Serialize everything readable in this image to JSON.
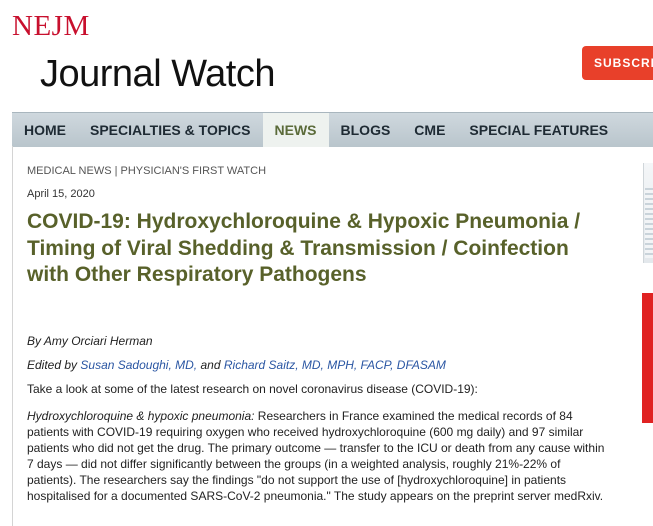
{
  "header": {
    "logo_top": "NEJM",
    "logo_bottom": "Journal Watch",
    "subscribe_label": "SUBSCRI"
  },
  "nav": {
    "items": [
      {
        "label": "HOME"
      },
      {
        "label": "SPECIALTIES & TOPICS"
      },
      {
        "label": "NEWS"
      },
      {
        "label": "BLOGS"
      },
      {
        "label": "CME"
      },
      {
        "label": "SPECIAL FEATURES"
      }
    ],
    "active": "NEWS"
  },
  "article": {
    "section": "MEDICAL NEWS | PHYSICIAN'S FIRST WATCH",
    "date": "April 15, 2020",
    "headline": "COVID-19: Hydroxychloroquine & Hypoxic Pneumonia / Timing of Viral Shedding & Transmission / Coinfection with Other Respiratory Pathogens",
    "byline": "By Amy Orciari Herman",
    "edited_prefix": "Edited by",
    "editor1": "Susan Sadoughi, MD,",
    "edited_and": "and",
    "editor2": "Richard Saitz, MD, MPH, FACP, DFASAM",
    "intro": "Take a look at some of the latest research on novel coronavirus disease (COVID-19):",
    "para_lead": "Hydroxychloroquine & hypoxic pneumonia:",
    "para_body": " Researchers in France examined the medical records of 84 patients with COVID-19 requiring oxygen who received hydroxychloroquine (600 mg daily) and 97 similar patients who did not get the drug. The primary outcome — transfer to the ICU or death from any cause within 7 days — did not differ significantly between the groups (in a weighted analysis, roughly 21%-22% of patients). The researchers say the findings \"do not support the use of [hydroxychloroquine] in patients hospitalised for a documented SARS-CoV-2 pneumonia.\" The study appears on the preprint server medRxiv."
  },
  "colors": {
    "brand_red": "#c8102e",
    "subscribe_bg": "#e8402a",
    "nav_bg": "#c3ced5",
    "headline": "#58612a",
    "link": "#2a56a3"
  }
}
